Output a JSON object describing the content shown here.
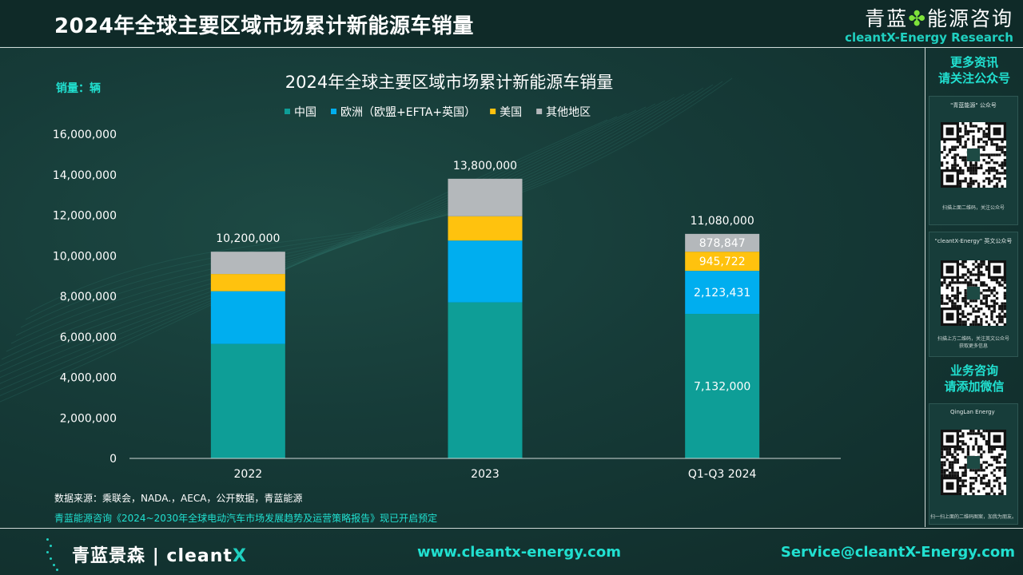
{
  "header": {
    "title": "2024年全球主要区域市场累计新能源车销量",
    "brand_cn_1": "青蓝",
    "brand_cn_2": "能源咨询",
    "brand_en": "cleantX-Energy Research"
  },
  "sidebar": {
    "heading_1_line1": "更多资讯",
    "heading_1_line2": "请关注公众号",
    "qr1_caption": "\"青蓝能源\" 公众号",
    "qr1_foot": "扫描上面二维码，关注公众号",
    "qr2_caption": "\"cleantX-Energy\" 英文公众号",
    "qr2_foot_1": "扫描上方二维码，关注英文公众号",
    "qr2_foot_2": "获取更多信息",
    "heading_2_line1": "业务咨询",
    "heading_2_line2": "请添加微信",
    "qr3_caption": "QingLan Energy",
    "qr3_foot": "扫一扫上面的二维码图案，加我为朋友。"
  },
  "colors": {
    "china": "#0e9e97",
    "europe": "#00aeef",
    "usa": "#ffc20e",
    "other": "#b4b8bb"
  },
  "chart_data": {
    "type": "bar",
    "stacked": true,
    "title": "2024年全球主要区域市场累计新能源车销量",
    "unit_label": "销量：辆",
    "categories": [
      "2022",
      "2023",
      "Q1-Q3 2024"
    ],
    "ylim": [
      0,
      16000000
    ],
    "yticks": [
      0,
      2000000,
      4000000,
      6000000,
      8000000,
      10000000,
      12000000,
      14000000,
      16000000
    ],
    "ytick_labels": [
      "0",
      "2,000,000",
      "4,000,000",
      "6,000,000",
      "8,000,000",
      "10,000,000",
      "12,000,000",
      "14,000,000",
      "16,000,000"
    ],
    "legend_position": "top",
    "series": [
      {
        "name": "中国",
        "color": "#0e9e97",
        "values": [
          5650000,
          7700000,
          7132000
        ]
      },
      {
        "name": "欧洲（欧盟+EFTA+英国）",
        "color": "#00aeef",
        "values": [
          2600000,
          3050000,
          2123431
        ]
      },
      {
        "name": "美国",
        "color": "#ffc20e",
        "values": [
          850000,
          1200000,
          945722
        ]
      },
      {
        "name": "其他地区",
        "color": "#b4b8bb",
        "values": [
          1100000,
          1850000,
          878847
        ]
      }
    ],
    "totals": [
      10200000,
      13800000,
      11080000
    ],
    "total_labels": [
      "10,200,000",
      "13,800,000",
      "11,080,000"
    ],
    "segment_labels_2024": [
      "7,132,000",
      "2,123,431",
      "945,722",
      "878,847"
    ],
    "source": "数据来源：乘联会，NADA.，AECA，公开数据，青蓝能源",
    "promo": "青蓝能源咨询《2024~2030年全球电动汽车市场发展趋势及运营策略报告》现已开启预定"
  },
  "footer": {
    "logo_cn": "青蓝景森",
    "logo_sep": "|",
    "logo_en_1": "cleant",
    "logo_en_2": "X",
    "website": "www.cleantx-energy.com",
    "email": "Service@cleantX-Energy.com"
  }
}
